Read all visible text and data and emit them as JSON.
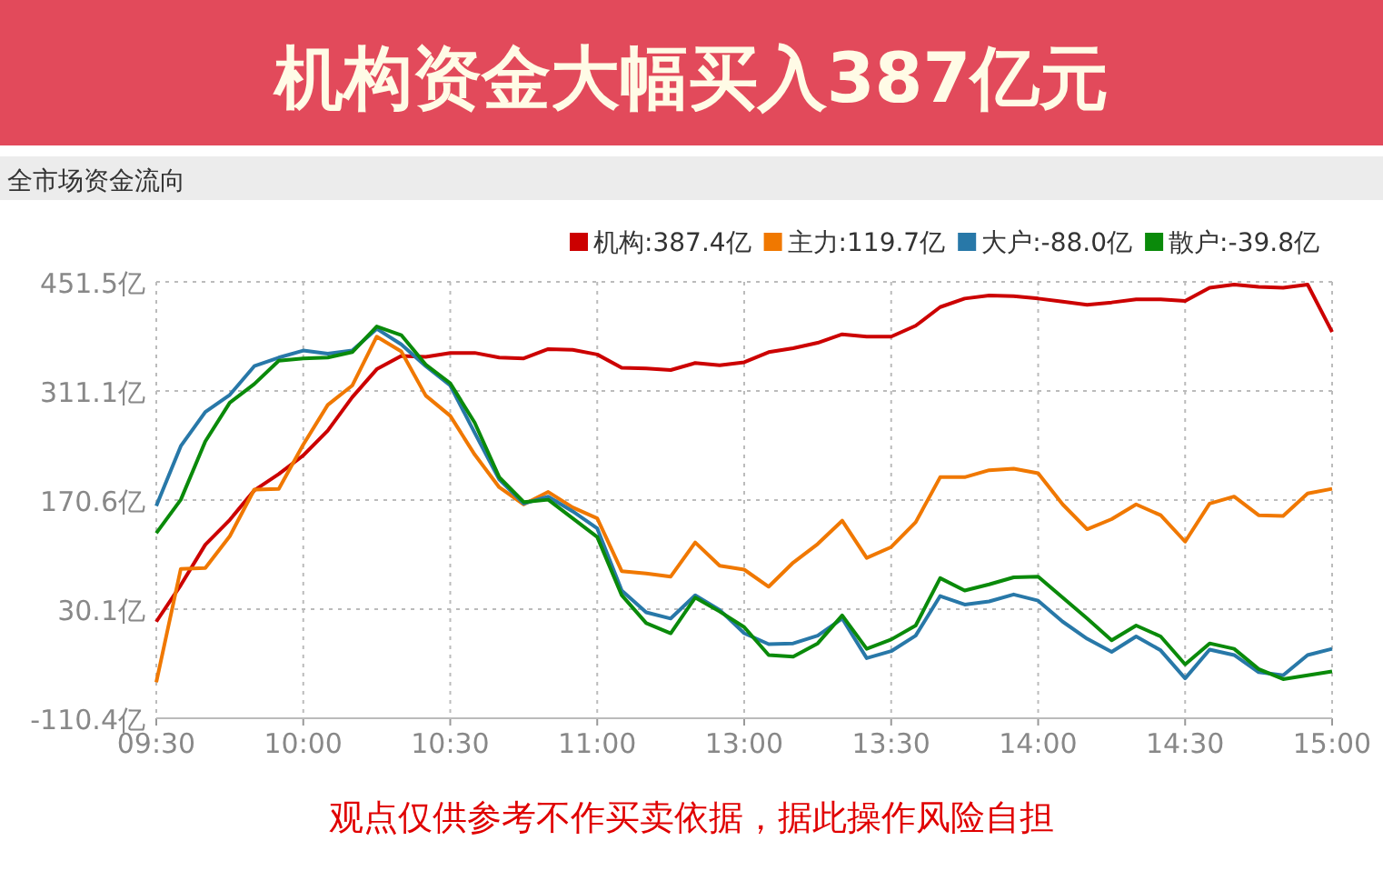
{
  "chart_data": {
    "type": "line",
    "title": "机构资金大幅买入387亿元",
    "subtitle": "全市场资金流向",
    "annotations": [
      "观点仅供参考不作买卖依据，据此操作风险自担"
    ],
    "categories": [
      "09:30",
      null,
      null,
      null,
      null,
      null,
      "10:00",
      null,
      null,
      null,
      null,
      null,
      "10:30",
      null,
      null,
      null,
      null,
      null,
      "11:00",
      null,
      null,
      null,
      null,
      null,
      "13:00",
      null,
      null,
      null,
      null,
      null,
      "13:30",
      null,
      null,
      null,
      null,
      null,
      "14:00",
      null,
      null,
      null,
      null,
      null,
      "14:30",
      null,
      null,
      null,
      null,
      null,
      "15:00"
    ],
    "ylim": [
      -110.4,
      451.5
    ],
    "yticks": [
      {
        "value": -110.4,
        "label": "-110.4亿"
      },
      {
        "value": 30.1,
        "label": "30.1亿"
      },
      {
        "value": 170.6,
        "label": "170.6亿"
      },
      {
        "value": 311.1,
        "label": "311.1亿"
      },
      {
        "value": 451.5,
        "label": "451.5亿"
      }
    ],
    "grid": true,
    "legend": "top right",
    "marker": "none",
    "line_style": "solid",
    "series": [
      {
        "name": "机构:387.4亿",
        "color": "#cc0000",
        "values": [
          14,
          61,
          113,
          145,
          183,
          204,
          228,
          260,
          303,
          339,
          356,
          355,
          360,
          360,
          354,
          353,
          365,
          364,
          358,
          341,
          340,
          338,
          347,
          344,
          348,
          361,
          366,
          373,
          384,
          381,
          381,
          395,
          419,
          430,
          434,
          433,
          430,
          426,
          422,
          425,
          429,
          429,
          427,
          444,
          448,
          445,
          444,
          448,
          387
        ]
      },
      {
        "name": "主力:119.7亿",
        "color": "#f07800",
        "values": [
          -64,
          82,
          83,
          124,
          184,
          185,
          242,
          293,
          318,
          381,
          362,
          305,
          279,
          229,
          187,
          165,
          181,
          161,
          147,
          79,
          76,
          72,
          116,
          86,
          81,
          59,
          90,
          114,
          144,
          96,
          110,
          142,
          200,
          200,
          209,
          211,
          205,
          165,
          133,
          146,
          165,
          151,
          117,
          166,
          175,
          151,
          150,
          179,
          185
        ]
      },
      {
        "name": "大户:-88.0亿",
        "color": "#2878a8",
        "values": [
          163,
          240,
          284,
          306,
          343,
          354,
          363,
          359,
          363,
          391,
          371,
          343,
          318,
          257,
          197,
          166,
          175,
          156,
          134,
          54,
          26,
          18,
          48,
          29,
          -1,
          -15,
          -14,
          -4,
          18,
          -33,
          -24,
          -4,
          47,
          36,
          40,
          49,
          41,
          14,
          -8,
          -25,
          -5,
          -23,
          -59,
          -22,
          -29,
          -51,
          -55,
          -29,
          -21
        ]
      },
      {
        "name": "散户:-39.8亿",
        "color": "#0a8a0a",
        "values": [
          128,
          171,
          246,
          296,
          320,
          350,
          353,
          354,
          361,
          394,
          383,
          345,
          321,
          270,
          200,
          168,
          171,
          147,
          123,
          48,
          12,
          -1,
          45,
          27,
          7,
          -29,
          -31,
          -14,
          22,
          -21,
          -9,
          9,
          70,
          54,
          62,
          71,
          72,
          45,
          18,
          -10,
          9,
          -5,
          -41,
          -14,
          -21,
          -47,
          -60,
          -55,
          -50
        ]
      }
    ]
  }
}
